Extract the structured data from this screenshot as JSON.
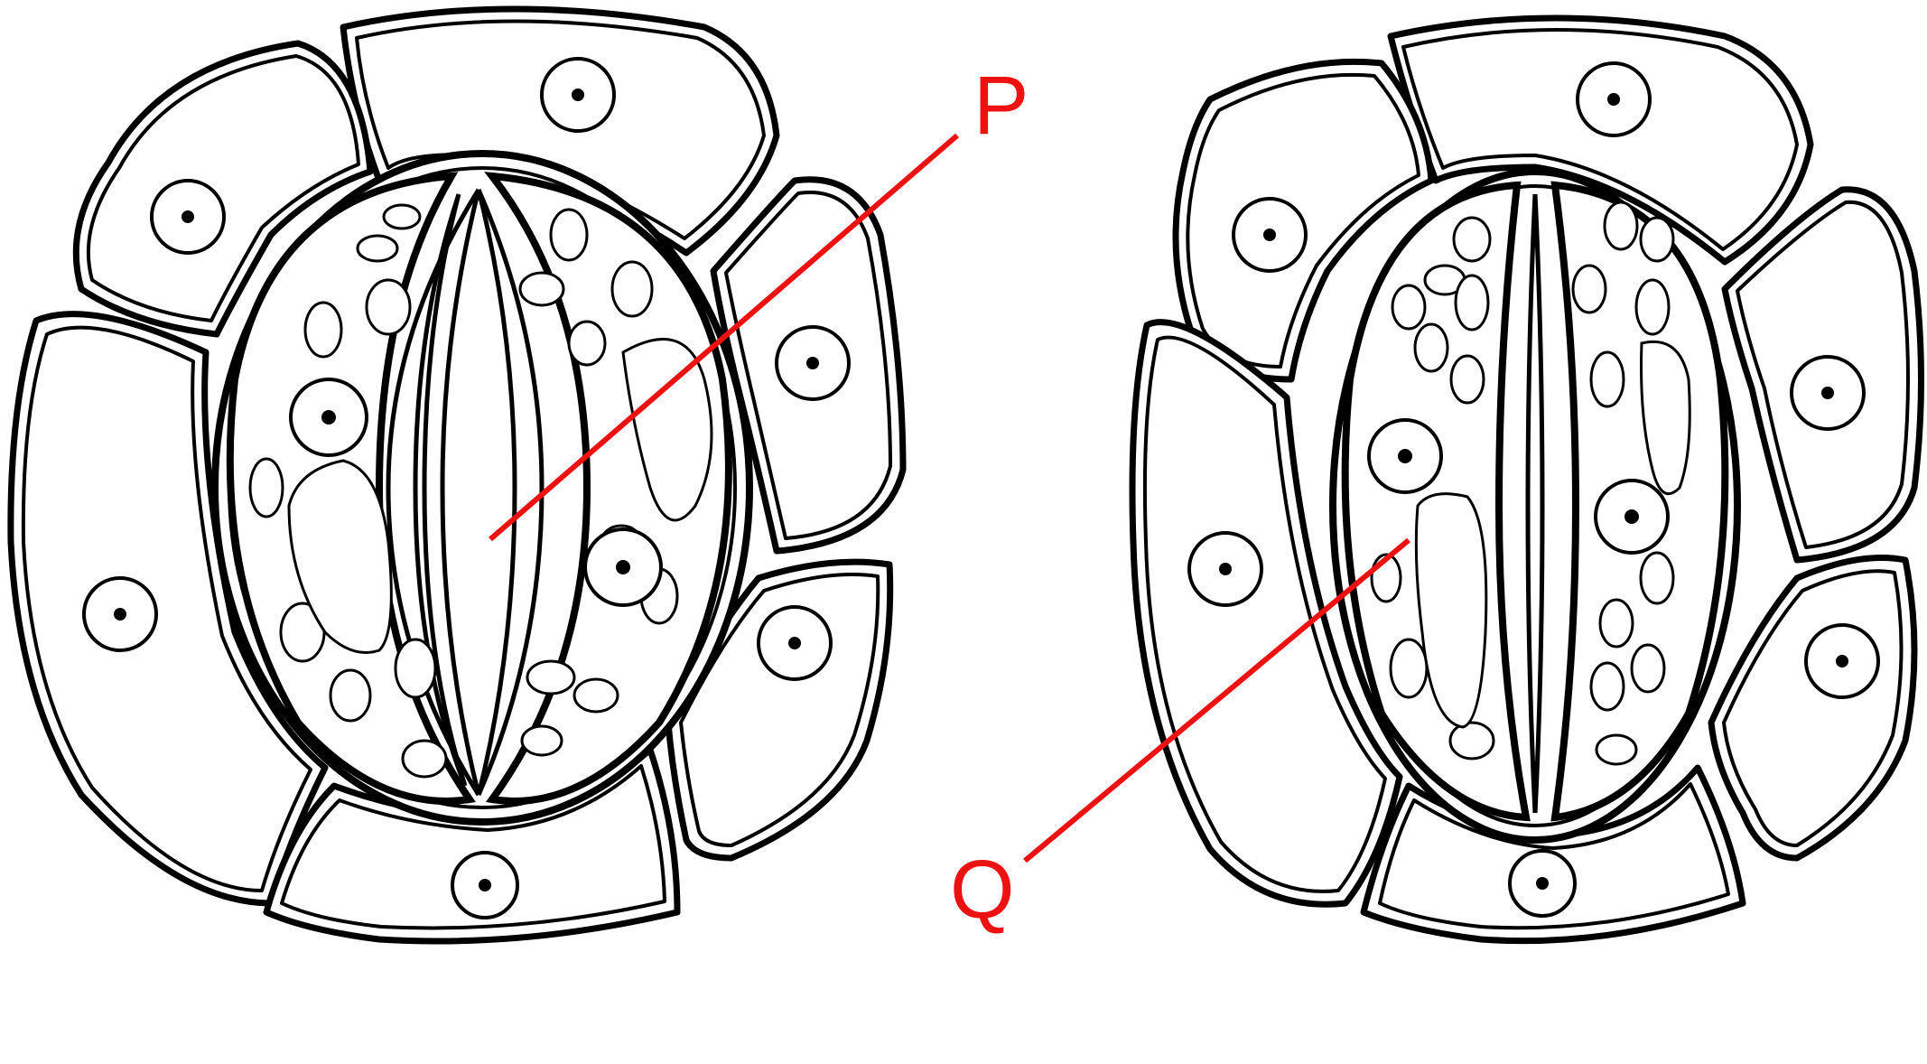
{
  "labels": {
    "p": "P",
    "q": "Q"
  },
  "colors": {
    "label": "#ee1111",
    "outline": "#000000",
    "background": "#ffffff"
  }
}
